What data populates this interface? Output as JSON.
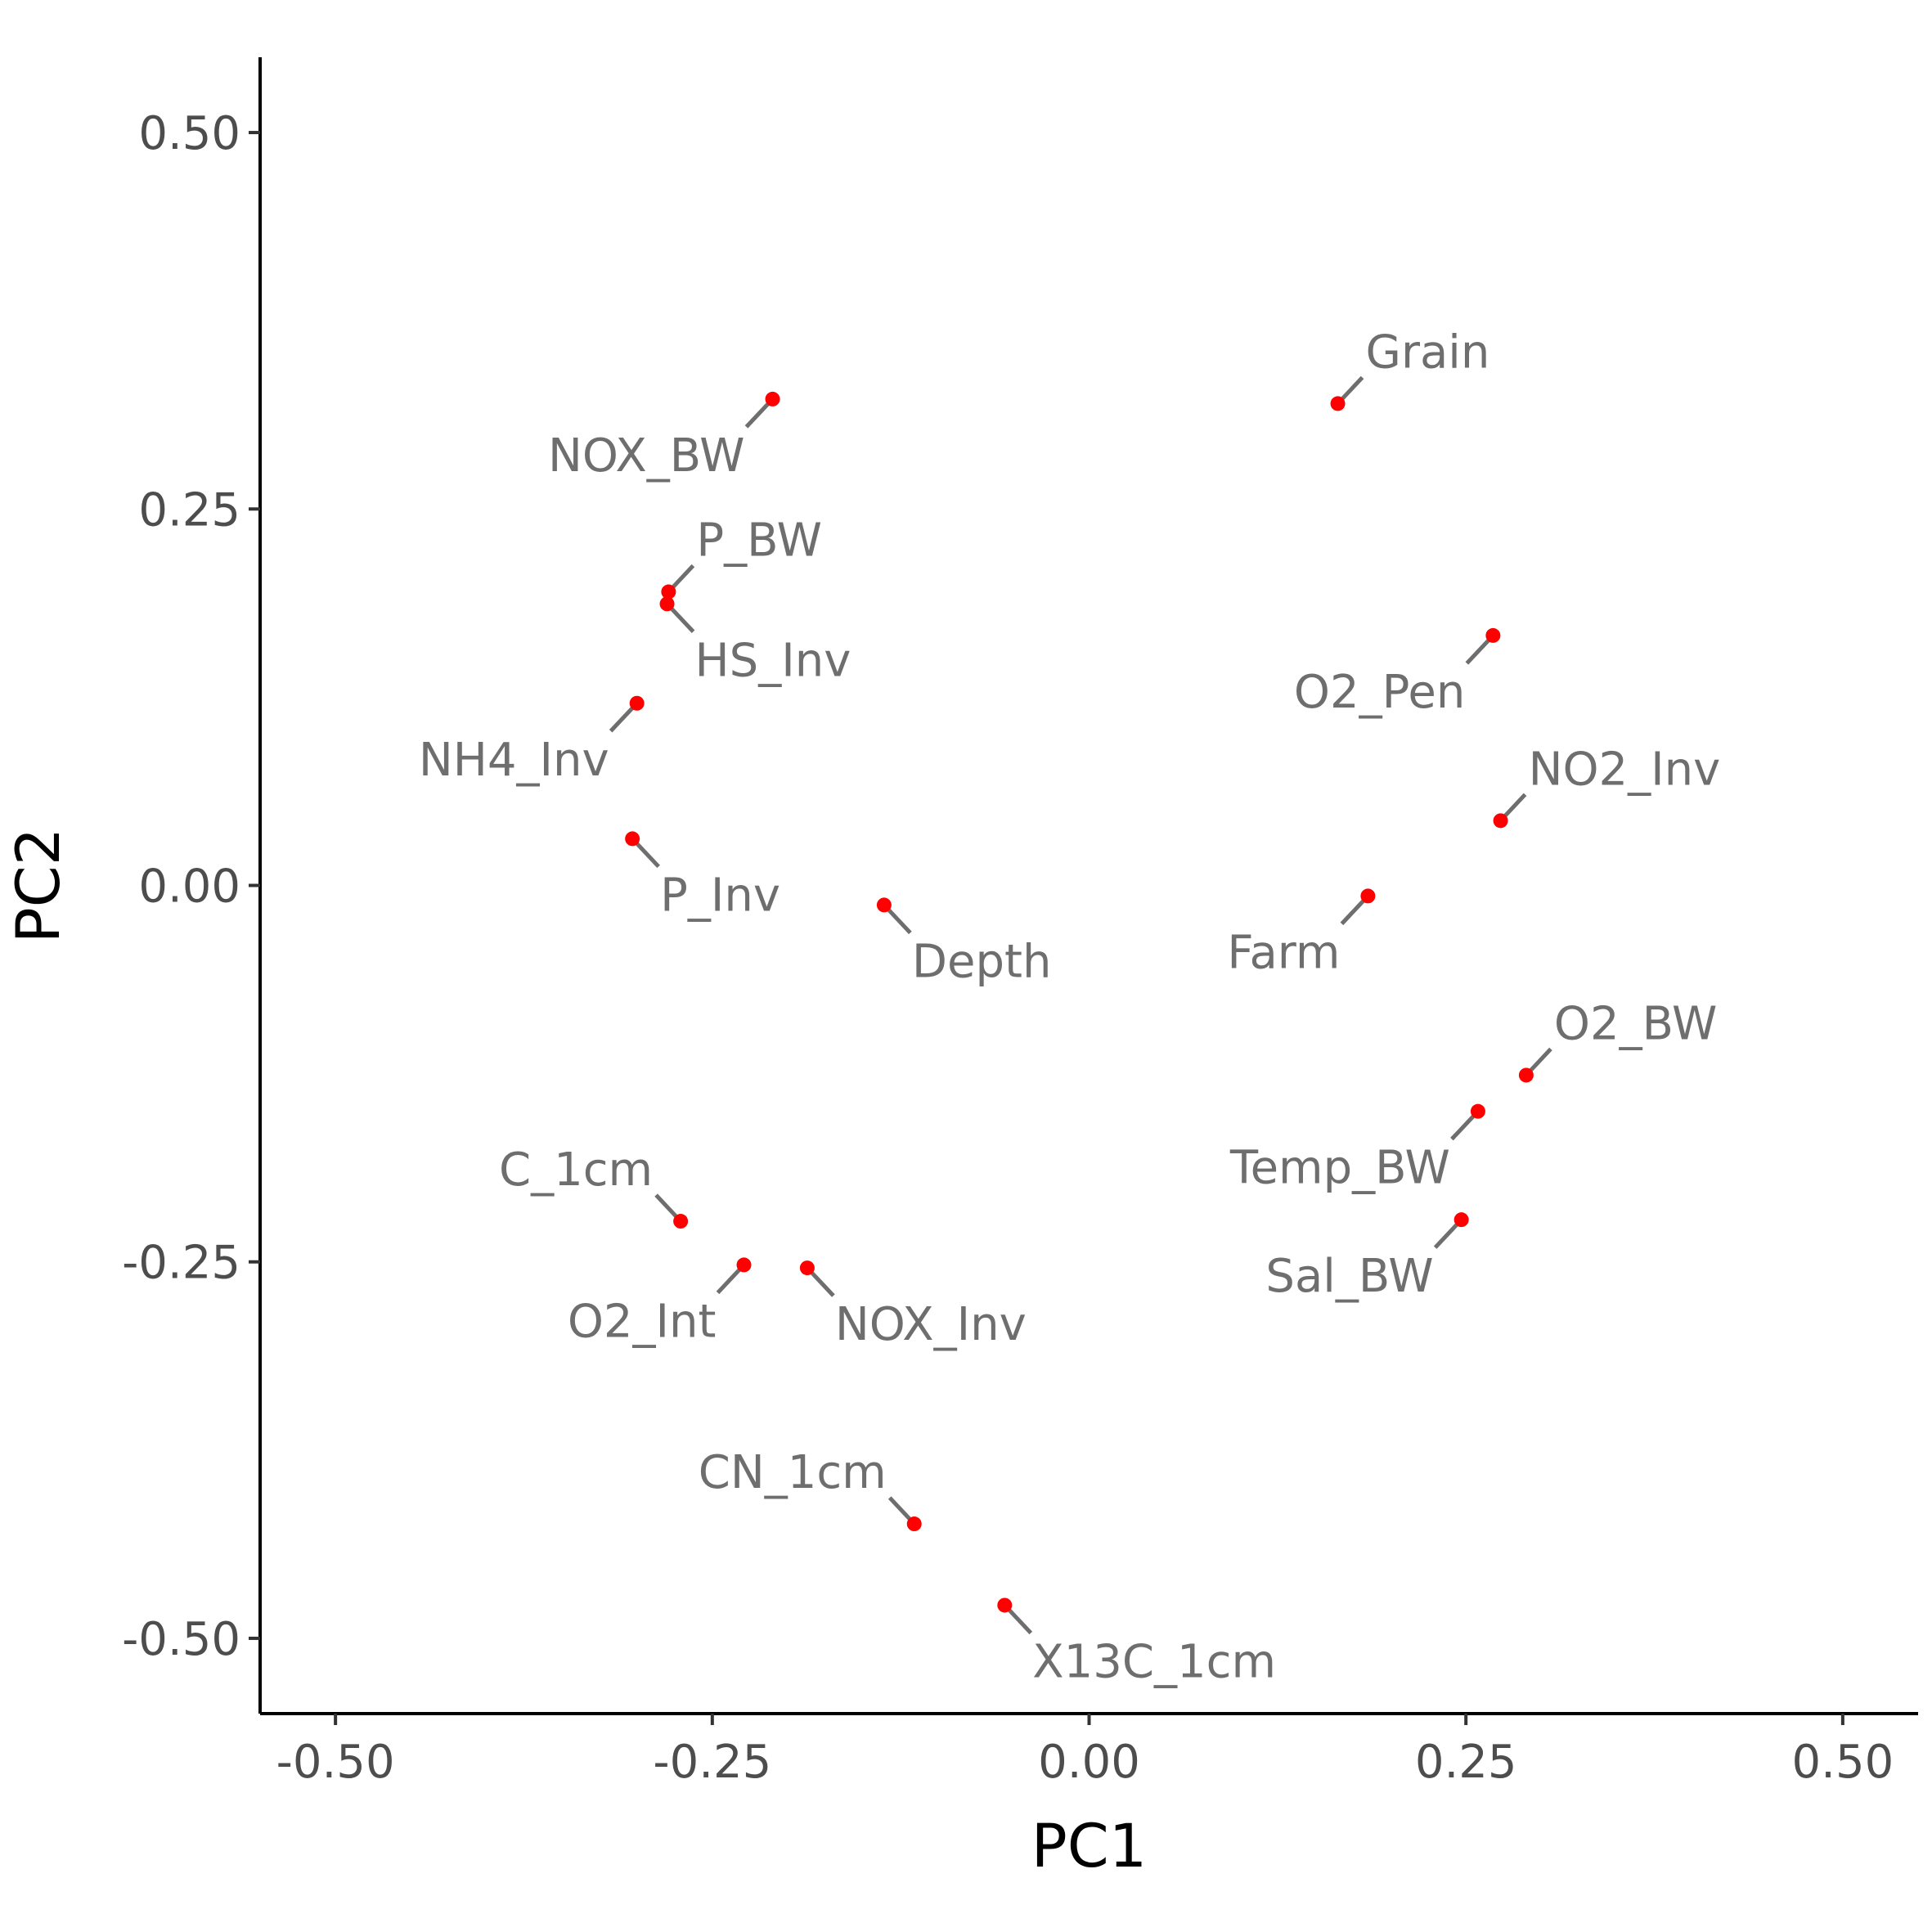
{
  "chart_data": {
    "type": "scatter",
    "xlabel": "PC1",
    "ylabel": "PC2",
    "xlim": [
      -0.55,
      0.55
    ],
    "ylim": [
      -0.55,
      0.55
    ],
    "x_ticks": [
      -0.5,
      -0.25,
      0.0,
      0.25,
      0.5
    ],
    "x_tick_labels": [
      "-0.50",
      "-0.25",
      "0.00",
      "0.25",
      "0.50"
    ],
    "y_ticks": [
      -0.5,
      -0.25,
      0.0,
      0.25,
      0.5
    ],
    "y_tick_labels": [
      "-0.50",
      "-0.25",
      "0.00",
      "0.25",
      "0.50"
    ],
    "grid": false,
    "legend": "none",
    "colors": {
      "point": "#ff0000",
      "label": "#6e6e6e",
      "leader": "#6e6e6e",
      "axis": "#000000",
      "tick_text": "#4d4d4d"
    },
    "points": [
      {
        "label": "Grain",
        "x": 0.165,
        "y": 0.32,
        "label_pos": "above-right"
      },
      {
        "label": "NOX_BW",
        "x": -0.21,
        "y": 0.323,
        "label_pos": "below-left"
      },
      {
        "label": "P_BW",
        "x": -0.279,
        "y": 0.195,
        "label_pos": "above-right"
      },
      {
        "label": "HS_Inv",
        "x": -0.28,
        "y": 0.187,
        "label_pos": "below-right"
      },
      {
        "label": "O2_Pen",
        "x": 0.268,
        "y": 0.166,
        "label_pos": "below-left"
      },
      {
        "label": "NH4_Inv",
        "x": -0.3,
        "y": 0.121,
        "label_pos": "below-left"
      },
      {
        "label": "NO2_Inv",
        "x": 0.273,
        "y": 0.043,
        "label_pos": "above-right"
      },
      {
        "label": "P_Inv",
        "x": -0.303,
        "y": 0.031,
        "label_pos": "below-right"
      },
      {
        "label": "Depth",
        "x": -0.136,
        "y": -0.013,
        "label_pos": "below-right"
      },
      {
        "label": "Farm",
        "x": 0.185,
        "y": -0.007,
        "label_pos": "below-left"
      },
      {
        "label": "O2_BW",
        "x": 0.29,
        "y": -0.126,
        "label_pos": "above-right"
      },
      {
        "label": "Temp_BW",
        "x": 0.258,
        "y": -0.15,
        "label_pos": "below-left"
      },
      {
        "label": "C_1cm",
        "x": -0.271,
        "y": -0.223,
        "label_pos": "above-left"
      },
      {
        "label": "Sal_BW",
        "x": 0.247,
        "y": -0.222,
        "label_pos": "below-left"
      },
      {
        "label": "O2_Int",
        "x": -0.229,
        "y": -0.252,
        "label_pos": "below-left"
      },
      {
        "label": "NOX_Inv",
        "x": -0.187,
        "y": -0.254,
        "label_pos": "below-right"
      },
      {
        "label": "CN_1cm",
        "x": -0.116,
        "y": -0.424,
        "label_pos": "above-left"
      },
      {
        "label": "X13C_1cm",
        "x": -0.056,
        "y": -0.478,
        "label_pos": "below-right"
      }
    ]
  }
}
